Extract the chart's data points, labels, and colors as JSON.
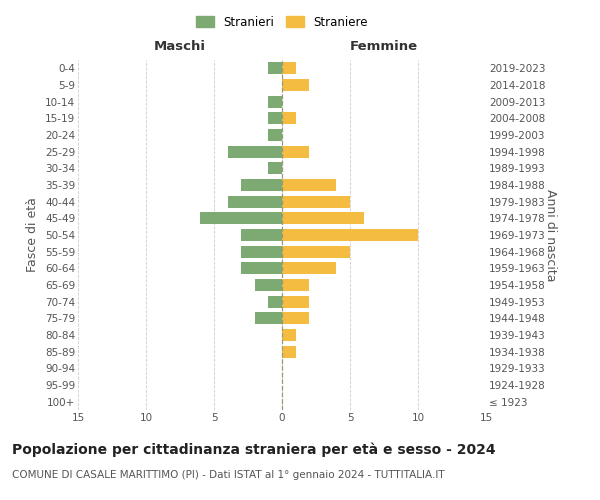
{
  "age_groups": [
    "100+",
    "95-99",
    "90-94",
    "85-89",
    "80-84",
    "75-79",
    "70-74",
    "65-69",
    "60-64",
    "55-59",
    "50-54",
    "45-49",
    "40-44",
    "35-39",
    "30-34",
    "25-29",
    "20-24",
    "15-19",
    "10-14",
    "5-9",
    "0-4"
  ],
  "birth_years": [
    "≤ 1923",
    "1924-1928",
    "1929-1933",
    "1934-1938",
    "1939-1943",
    "1944-1948",
    "1949-1953",
    "1954-1958",
    "1959-1963",
    "1964-1968",
    "1969-1973",
    "1974-1978",
    "1979-1983",
    "1984-1988",
    "1989-1993",
    "1994-1998",
    "1999-2003",
    "2004-2008",
    "2009-2013",
    "2014-2018",
    "2019-2023"
  ],
  "males": [
    0,
    0,
    0,
    0,
    0,
    2,
    1,
    2,
    3,
    3,
    3,
    6,
    4,
    3,
    1,
    4,
    1,
    1,
    1,
    0,
    1
  ],
  "females": [
    0,
    0,
    0,
    1,
    1,
    2,
    2,
    2,
    4,
    5,
    10,
    6,
    5,
    4,
    0,
    2,
    0,
    1,
    0,
    2,
    1
  ],
  "male_color": "#7daa72",
  "female_color": "#f5bc42",
  "background_color": "#ffffff",
  "grid_color": "#cccccc",
  "title": "Popolazione per cittadinanza straniera per età e sesso - 2024",
  "subtitle": "COMUNE DI CASALE MARITTIMO (PI) - Dati ISTAT al 1° gennaio 2024 - TUTTITALIA.IT",
  "xlabel_left": "Maschi",
  "xlabel_right": "Femmine",
  "ylabel_left": "Fasce di età",
  "ylabel_right": "Anni di nascita",
  "legend_stranieri": "Stranieri",
  "legend_straniere": "Straniere",
  "xlim": 15,
  "title_fontsize": 10,
  "subtitle_fontsize": 7.5,
  "axis_label_fontsize": 9,
  "tick_fontsize": 7.5
}
